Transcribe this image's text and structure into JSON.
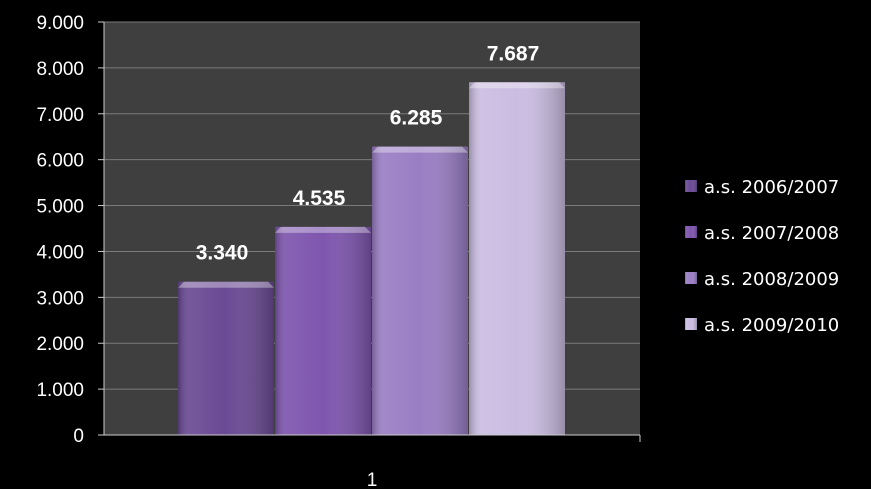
{
  "chart_data": {
    "type": "bar",
    "categories": [
      "1"
    ],
    "series": [
      {
        "name": "a.s. 2006/2007",
        "values": [
          3340
        ],
        "label": "3.340",
        "color": "#6a4a94"
      },
      {
        "name": "a.s. 2007/2008",
        "values": [
          4535
        ],
        "label": "4.535",
        "color": "#7e56ae"
      },
      {
        "name": "a.s. 2008/2009",
        "values": [
          6285
        ],
        "label": "6.285",
        "color": "#9a7ec4"
      },
      {
        "name": "a.s. 2009/2010",
        "values": [
          7687
        ],
        "label": "7.687",
        "color": "#cbbde2"
      }
    ],
    "ylim": [
      0,
      9000
    ],
    "yticks": [
      {
        "value": 0,
        "label": "0"
      },
      {
        "value": 1000,
        "label": "1.000"
      },
      {
        "value": 2000,
        "label": "2.000"
      },
      {
        "value": 3000,
        "label": "3.000"
      },
      {
        "value": 4000,
        "label": "4.000"
      },
      {
        "value": 5000,
        "label": "5.000"
      },
      {
        "value": 6000,
        "label": "6.000"
      },
      {
        "value": 7000,
        "label": "7.000"
      },
      {
        "value": 8000,
        "label": "8.000"
      },
      {
        "value": 9000,
        "label": "9.000"
      }
    ],
    "grid": true,
    "legend_position": "right",
    "title": "",
    "xlabel": "",
    "ylabel": ""
  },
  "colors": {
    "page_background": "#000000",
    "plot_background": "#3f3f3f",
    "grid": "#7a7a7a",
    "text": "#ffffff"
  }
}
